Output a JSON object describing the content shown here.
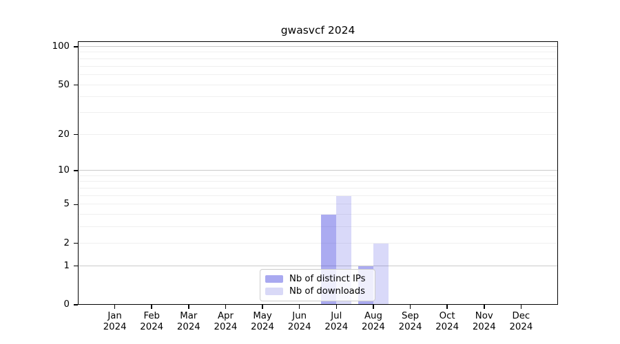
{
  "title": "gwasvcf 2024",
  "chart_data": {
    "type": "bar",
    "title": "gwasvcf 2024",
    "x": [
      "Jan 2024",
      "Feb 2024",
      "Mar 2024",
      "Apr 2024",
      "May 2024",
      "Jun 2024",
      "Jul 2024",
      "Aug 2024",
      "Sep 2024",
      "Oct 2024",
      "Nov 2024",
      "Dec 2024"
    ],
    "x_tick_labels": [
      [
        "Jan",
        "2024"
      ],
      [
        "Feb",
        "2024"
      ],
      [
        "Mar",
        "2024"
      ],
      [
        "Apr",
        "2024"
      ],
      [
        "May",
        "2024"
      ],
      [
        "Jun",
        "2024"
      ],
      [
        "Jul",
        "2024"
      ],
      [
        "Aug",
        "2024"
      ],
      [
        "Sep",
        "2024"
      ],
      [
        "Oct",
        "2024"
      ],
      [
        "Nov",
        "2024"
      ],
      [
        "Dec",
        "2024"
      ]
    ],
    "series": [
      {
        "name": "Nb of distinct IPs",
        "fill": "rgba(77,77,226,0.47)",
        "swatch": "#a9a9f0",
        "values": [
          0,
          0,
          0,
          0,
          0,
          0,
          4,
          1,
          0,
          0,
          0,
          0
        ]
      },
      {
        "name": "Nb of downloads",
        "fill": "rgba(77,77,226,0.21)",
        "swatch": "#d9d9f7",
        "values": [
          0,
          0,
          0,
          0,
          0,
          0,
          6,
          2,
          0,
          0,
          0,
          0
        ]
      }
    ],
    "y_scale": "log1p",
    "ylim": [
      0,
      111
    ],
    "y_tick_values": [
      0,
      1,
      2,
      5,
      10,
      20,
      50,
      100
    ],
    "y_tick_labels": [
      "0",
      "1",
      "2",
      "5",
      "10",
      "20",
      "50",
      "100"
    ],
    "grid": {
      "major_values": [
        1,
        10,
        100
      ],
      "minor_values": [
        2,
        3,
        4,
        5,
        6,
        7,
        8,
        9,
        20,
        30,
        40,
        50,
        60,
        70,
        80,
        90
      ],
      "major_color": "#c9c9c9",
      "minor_color": "#efefef"
    },
    "legend": {
      "entries": [
        "Nb of distinct IPs",
        "Nb of downloads"
      ],
      "position": "lower center inside"
    },
    "spine_color": "#000000",
    "text_color": "#000000",
    "background": "#ffffff"
  }
}
